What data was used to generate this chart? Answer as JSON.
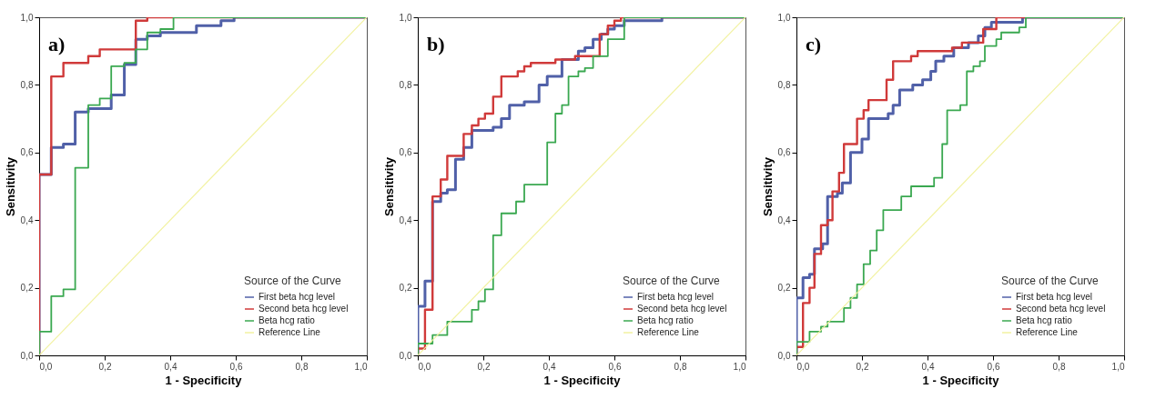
{
  "chart_data": [
    {
      "type": "step",
      "annotations": [
        "a)"
      ],
      "xlabel": "1 - Specificity",
      "ylabel": "Sensitivity",
      "legend_title": "Source of the Curve",
      "legend": "bottom right",
      "grid": false,
      "xlim": [
        0,
        1
      ],
      "ylim": [
        0,
        1
      ],
      "xticks": [
        {
          "value": 0,
          "label": "0,0"
        },
        {
          "value": 0.2,
          "label": "0,2"
        },
        {
          "value": 0.4,
          "label": "0,4"
        },
        {
          "value": 0.6,
          "label": "0,6"
        },
        {
          "value": 0.8,
          "label": "0,8"
        },
        {
          "value": 1,
          "label": "1,0"
        }
      ],
      "yticks": [
        {
          "value": 0,
          "label": "0,0"
        },
        {
          "value": 0.2,
          "label": "0,2"
        },
        {
          "value": 0.4,
          "label": "0,4"
        },
        {
          "value": 0.6,
          "label": "0,6"
        },
        {
          "value": 0.8,
          "label": "0,8"
        },
        {
          "value": 1,
          "label": "1,0"
        }
      ],
      "series": [
        {
          "name": "First beta hcg level",
          "color": "#5060a8",
          "x": [
            0,
            0,
            0.037,
            0.074,
            0.11,
            0.15,
            0.22,
            0.26,
            0.295,
            0.33,
            0.37,
            0.48,
            0.555,
            0.595,
            1
          ],
          "values": [
            0,
            0.535,
            0.615,
            0.625,
            0.72,
            0.73,
            0.77,
            0.86,
            0.935,
            0.945,
            0.955,
            0.975,
            0.99,
            1,
            1
          ]
        },
        {
          "name": "Second beta hcg level",
          "color": "#d03a3a",
          "x": [
            0,
            0,
            0.037,
            0.074,
            0.15,
            0.185,
            0.295,
            0.33,
            1
          ],
          "values": [
            0,
            0.535,
            0.825,
            0.865,
            0.885,
            0.905,
            0.99,
            1,
            1
          ]
        },
        {
          "name": "Beta hcg ratio",
          "color": "#3aa850",
          "x": [
            0,
            0,
            0.037,
            0.074,
            0.11,
            0.15,
            0.185,
            0.22,
            0.26,
            0.295,
            0.33,
            0.37,
            0.41,
            1
          ],
          "values": [
            0,
            0.07,
            0.175,
            0.195,
            0.555,
            0.74,
            0.76,
            0.855,
            0.865,
            0.905,
            0.955,
            0.965,
            1,
            1
          ]
        },
        {
          "name": "Reference Line",
          "type": "line",
          "color": "#f2f2a0",
          "x": [
            0,
            1
          ],
          "values": [
            0,
            1
          ]
        }
      ]
    },
    {
      "type": "step",
      "annotations": [
        "b)"
      ],
      "xlabel": "1 - Specificity",
      "ylabel": "Sensitivity",
      "legend_title": "Source of the Curve",
      "legend": "bottom right",
      "grid": false,
      "xlim": [
        0,
        1
      ],
      "ylim": [
        0,
        1
      ],
      "xticks": [
        {
          "value": 0,
          "label": "0,0"
        },
        {
          "value": 0.2,
          "label": "0,2"
        },
        {
          "value": 0.4,
          "label": "0,4"
        },
        {
          "value": 0.6,
          "label": "0,6"
        },
        {
          "value": 0.8,
          "label": "0,8"
        },
        {
          "value": 1,
          "label": "1,0"
        }
      ],
      "yticks": [
        {
          "value": 0,
          "label": "0,0"
        },
        {
          "value": 0.2,
          "label": "0,2"
        },
        {
          "value": 0.4,
          "label": "0,4"
        },
        {
          "value": 0.6,
          "label": "0,6"
        },
        {
          "value": 0.8,
          "label": "0,8"
        },
        {
          "value": 1,
          "label": "1,0"
        }
      ],
      "series": [
        {
          "name": "First beta hcg level",
          "color": "#5060a8",
          "x": [
            0,
            0,
            0.022,
            0.045,
            0.07,
            0.09,
            0.115,
            0.14,
            0.165,
            0.23,
            0.255,
            0.28,
            0.325,
            0.37,
            0.395,
            0.44,
            0.49,
            0.51,
            0.535,
            0.56,
            0.58,
            0.6,
            0.63,
            0.745,
            1
          ],
          "values": [
            0,
            0.145,
            0.22,
            0.455,
            0.48,
            0.49,
            0.58,
            0.615,
            0.665,
            0.675,
            0.7,
            0.74,
            0.75,
            0.8,
            0.825,
            0.875,
            0.9,
            0.91,
            0.935,
            0.95,
            0.965,
            0.975,
            0.99,
            1,
            1
          ]
        },
        {
          "name": "Second beta hcg level",
          "color": "#d03a3a",
          "x": [
            0,
            0,
            0.022,
            0.045,
            0.07,
            0.09,
            0.14,
            0.165,
            0.185,
            0.205,
            0.23,
            0.255,
            0.305,
            0.325,
            0.345,
            0.42,
            0.48,
            0.555,
            0.58,
            0.6,
            0.62,
            1
          ],
          "values": [
            0,
            0.02,
            0.135,
            0.47,
            0.52,
            0.59,
            0.655,
            0.68,
            0.7,
            0.715,
            0.765,
            0.825,
            0.84,
            0.855,
            0.865,
            0.875,
            0.885,
            0.95,
            0.975,
            0.99,
            1,
            1
          ]
        },
        {
          "name": "Beta hcg ratio",
          "color": "#3aa850",
          "x": [
            0,
            0,
            0.045,
            0.09,
            0.165,
            0.185,
            0.205,
            0.23,
            0.255,
            0.3,
            0.325,
            0.395,
            0.42,
            0.44,
            0.46,
            0.49,
            0.51,
            0.535,
            0.58,
            0.63,
            1
          ],
          "values": [
            0,
            0.035,
            0.06,
            0.1,
            0.135,
            0.16,
            0.195,
            0.355,
            0.42,
            0.455,
            0.505,
            0.63,
            0.715,
            0.74,
            0.825,
            0.84,
            0.85,
            0.885,
            0.935,
            1,
            1
          ]
        },
        {
          "name": "Reference Line",
          "type": "line",
          "color": "#f2f2a0",
          "x": [
            0,
            1
          ],
          "values": [
            0,
            1
          ]
        }
      ]
    },
    {
      "type": "step",
      "annotations": [
        "c)"
      ],
      "xlabel": "1 - Specificity",
      "ylabel": "Sensitivity",
      "legend_title": "Source of the Curve",
      "legend": "bottom right",
      "grid": false,
      "xlim": [
        0,
        1
      ],
      "ylim": [
        0,
        1
      ],
      "xticks": [
        {
          "value": 0,
          "label": "0,0"
        },
        {
          "value": 0.2,
          "label": "0,2"
        },
        {
          "value": 0.4,
          "label": "0,4"
        },
        {
          "value": 0.6,
          "label": "0,6"
        },
        {
          "value": 0.8,
          "label": "0,8"
        },
        {
          "value": 1,
          "label": "1,0"
        }
      ],
      "yticks": [
        {
          "value": 0,
          "label": "0,0"
        },
        {
          "value": 0.2,
          "label": "0,2"
        },
        {
          "value": 0.4,
          "label": "0,4"
        },
        {
          "value": 0.6,
          "label": "0,6"
        },
        {
          "value": 0.8,
          "label": "0,8"
        },
        {
          "value": 1,
          "label": "1,0"
        }
      ],
      "series": [
        {
          "name": "First beta hcg level",
          "color": "#5060a8",
          "x": [
            0,
            0,
            0.02,
            0.04,
            0.055,
            0.08,
            0.095,
            0.125,
            0.14,
            0.165,
            0.2,
            0.22,
            0.28,
            0.295,
            0.315,
            0.355,
            0.385,
            0.41,
            0.425,
            0.45,
            0.48,
            0.525,
            0.555,
            0.575,
            0.595,
            0.69,
            1
          ],
          "values": [
            0,
            0.17,
            0.23,
            0.24,
            0.315,
            0.33,
            0.47,
            0.48,
            0.51,
            0.6,
            0.64,
            0.7,
            0.715,
            0.74,
            0.785,
            0.8,
            0.815,
            0.84,
            0.87,
            0.885,
            0.91,
            0.925,
            0.945,
            0.97,
            0.985,
            1,
            1
          ]
        },
        {
          "name": "Second beta hcg level",
          "color": "#d03a3a",
          "x": [
            0,
            0,
            0.02,
            0.04,
            0.055,
            0.075,
            0.095,
            0.11,
            0.13,
            0.145,
            0.185,
            0.205,
            0.22,
            0.275,
            0.295,
            0.35,
            0.37,
            0.475,
            0.505,
            0.57,
            0.61,
            1
          ],
          "values": [
            0,
            0.025,
            0.155,
            0.2,
            0.3,
            0.385,
            0.4,
            0.485,
            0.54,
            0.625,
            0.7,
            0.725,
            0.755,
            0.815,
            0.87,
            0.885,
            0.9,
            0.91,
            0.925,
            0.965,
            1,
            1
          ]
        },
        {
          "name": "Beta hcg ratio",
          "color": "#3aa850",
          "x": [
            0,
            0,
            0.04,
            0.075,
            0.095,
            0.145,
            0.165,
            0.185,
            0.205,
            0.225,
            0.245,
            0.265,
            0.32,
            0.35,
            0.42,
            0.445,
            0.46,
            0.5,
            0.52,
            0.54,
            0.56,
            0.575,
            0.61,
            0.625,
            0.68,
            0.7,
            1
          ],
          "values": [
            0,
            0.04,
            0.07,
            0.085,
            0.1,
            0.14,
            0.17,
            0.21,
            0.27,
            0.31,
            0.37,
            0.43,
            0.47,
            0.5,
            0.525,
            0.625,
            0.725,
            0.74,
            0.84,
            0.855,
            0.87,
            0.915,
            0.935,
            0.955,
            0.97,
            1,
            1
          ]
        },
        {
          "name": "Reference Line",
          "type": "line",
          "color": "#f2f2a0",
          "x": [
            0,
            1
          ],
          "values": [
            0,
            1
          ]
        }
      ]
    }
  ]
}
